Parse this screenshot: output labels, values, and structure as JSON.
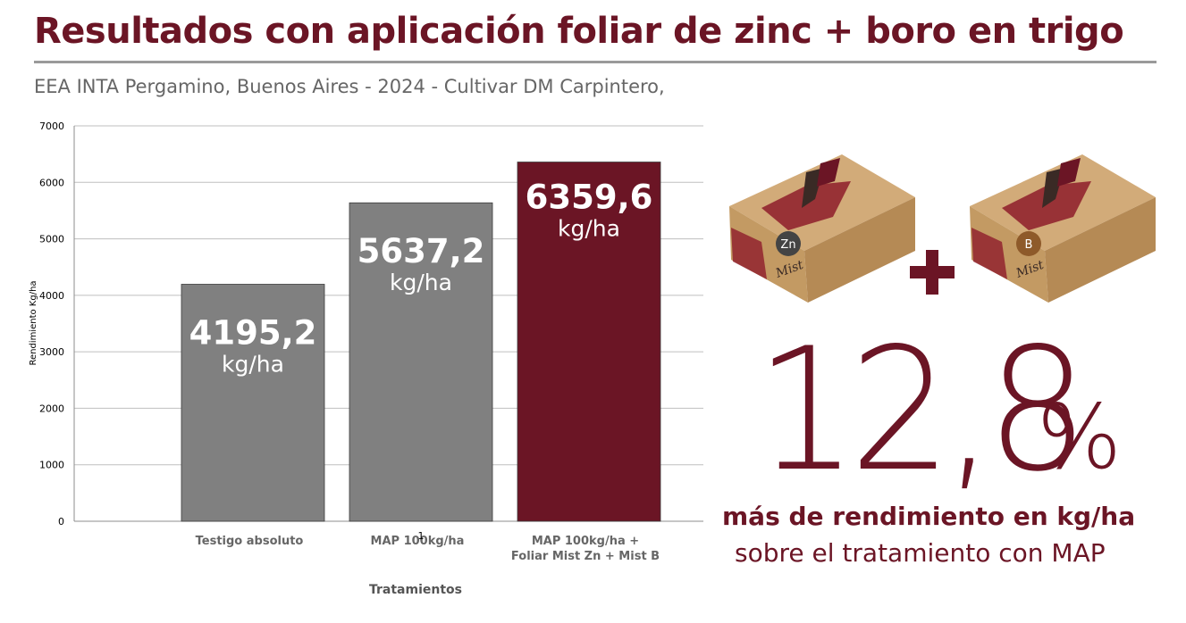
{
  "header": {
    "title": "Resultados con aplicación foliar de zinc + boro en trigo",
    "subtitle": "EEA INTA Pergamino, Buenos Aires - 2024 - Cultivar DM Carpintero,"
  },
  "chart_data": {
    "type": "bar",
    "categories": [
      [
        "Testigo absoluto"
      ],
      [
        "MAP 100kg/ha"
      ],
      [
        "MAP 100kg/ha +",
        "Foliar Mist Zn + Mist B"
      ]
    ],
    "values": [
      4195.2,
      5637.2,
      6359.6
    ],
    "value_labels": [
      "4195,2",
      "5637,2",
      "6359,6"
    ],
    "value_unit": "kg/ha",
    "bar_colors": [
      "#808080",
      "#808080",
      "#6b1525"
    ],
    "ylim": [
      0,
      7000
    ],
    "yticks": [
      0,
      1000,
      2000,
      3000,
      4000,
      5000,
      6000,
      7000
    ],
    "xlabel": "Tratamientos",
    "ylabel": "Rendimiento Kg/ha",
    "grid": true,
    "stray_label": "1"
  },
  "products": [
    {
      "icon": "mist-zn-box",
      "badge": "Zn",
      "brand": "Mist"
    },
    {
      "icon": "mist-b-box",
      "badge": "B",
      "brand": "Mist"
    }
  ],
  "highlight": {
    "number": "12,8",
    "percent": "%",
    "line1": "más de rendimiento en kg/ha",
    "line2": "sobre el tratamiento con MAP"
  },
  "colors": {
    "accent": "#6b1525",
    "bar_gray": "#808080",
    "text_gray": "#666666"
  }
}
